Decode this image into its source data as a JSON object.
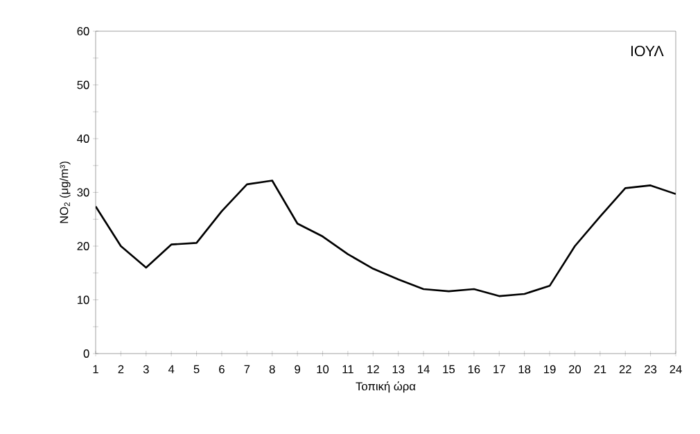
{
  "chart_data": {
    "type": "line",
    "title": "ΙΟΥΛ",
    "xlabel": "Τοπική ώρα",
    "ylabel": "NO$_{2}$ (μg/m³)",
    "x": [
      1,
      2,
      3,
      4,
      5,
      6,
      7,
      8,
      9,
      10,
      11,
      12,
      13,
      14,
      15,
      16,
      17,
      18,
      19,
      20,
      21,
      22,
      23,
      24
    ],
    "series": [
      {
        "color": "#000000",
        "values": [
          27.4,
          20,
          16,
          20.3,
          20.6,
          26.5,
          31.5,
          32.2,
          24.2,
          21.8,
          18.5,
          15.8,
          13.8,
          12,
          11.6,
          12,
          10.7,
          11.1,
          12.6,
          20,
          25.5,
          30.8,
          31.3,
          29.7
        ]
      }
    ],
    "xlim": [
      1,
      24
    ],
    "xticks": [
      1,
      2,
      3,
      4,
      5,
      6,
      7,
      8,
      9,
      10,
      11,
      12,
      13,
      14,
      15,
      16,
      17,
      18,
      19,
      20,
      21,
      22,
      23,
      24
    ],
    "ylim": [
      0,
      60
    ],
    "yticks": [
      0,
      10,
      20,
      30,
      40,
      50,
      60
    ],
    "marker": "none",
    "line_style": "solid"
  }
}
